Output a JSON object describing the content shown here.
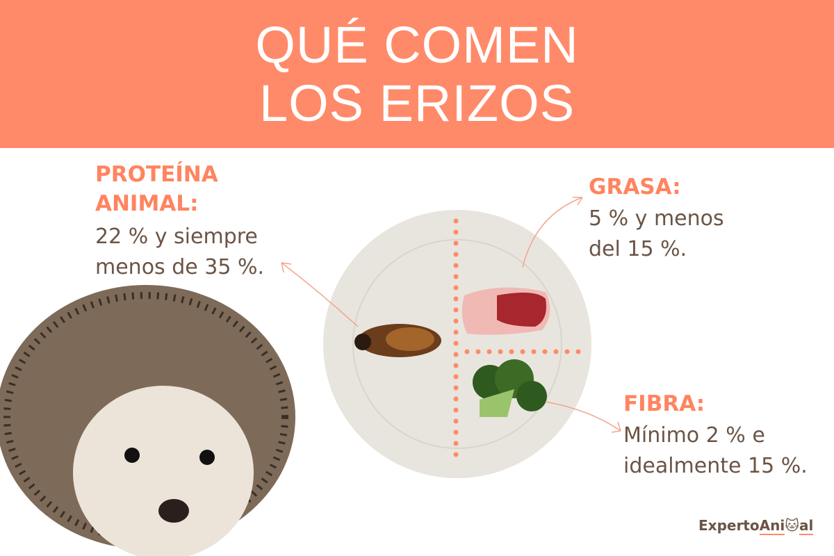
{
  "title": {
    "line1": "QUÉ COMEN",
    "line2": "LOS ERIZOS"
  },
  "protein": {
    "heading1": "PROTEÍNA",
    "heading2": "ANIMAL:",
    "text1": "22 % y siempre",
    "text2": "menos de 35 %."
  },
  "fat": {
    "heading": "GRASA:",
    "text1": "5 % y menos",
    "text2": "del 15 %."
  },
  "fiber": {
    "heading": "FIBRA:",
    "text1": "Mínimo 2 % e",
    "text2": "idealmente 15 %."
  },
  "logo": {
    "part1": "Experto",
    "part2": "Ani",
    "part3": "al"
  },
  "colors": {
    "accent": "#ff8a69",
    "text": "#6b5446",
    "plate": "#e9e6df"
  }
}
